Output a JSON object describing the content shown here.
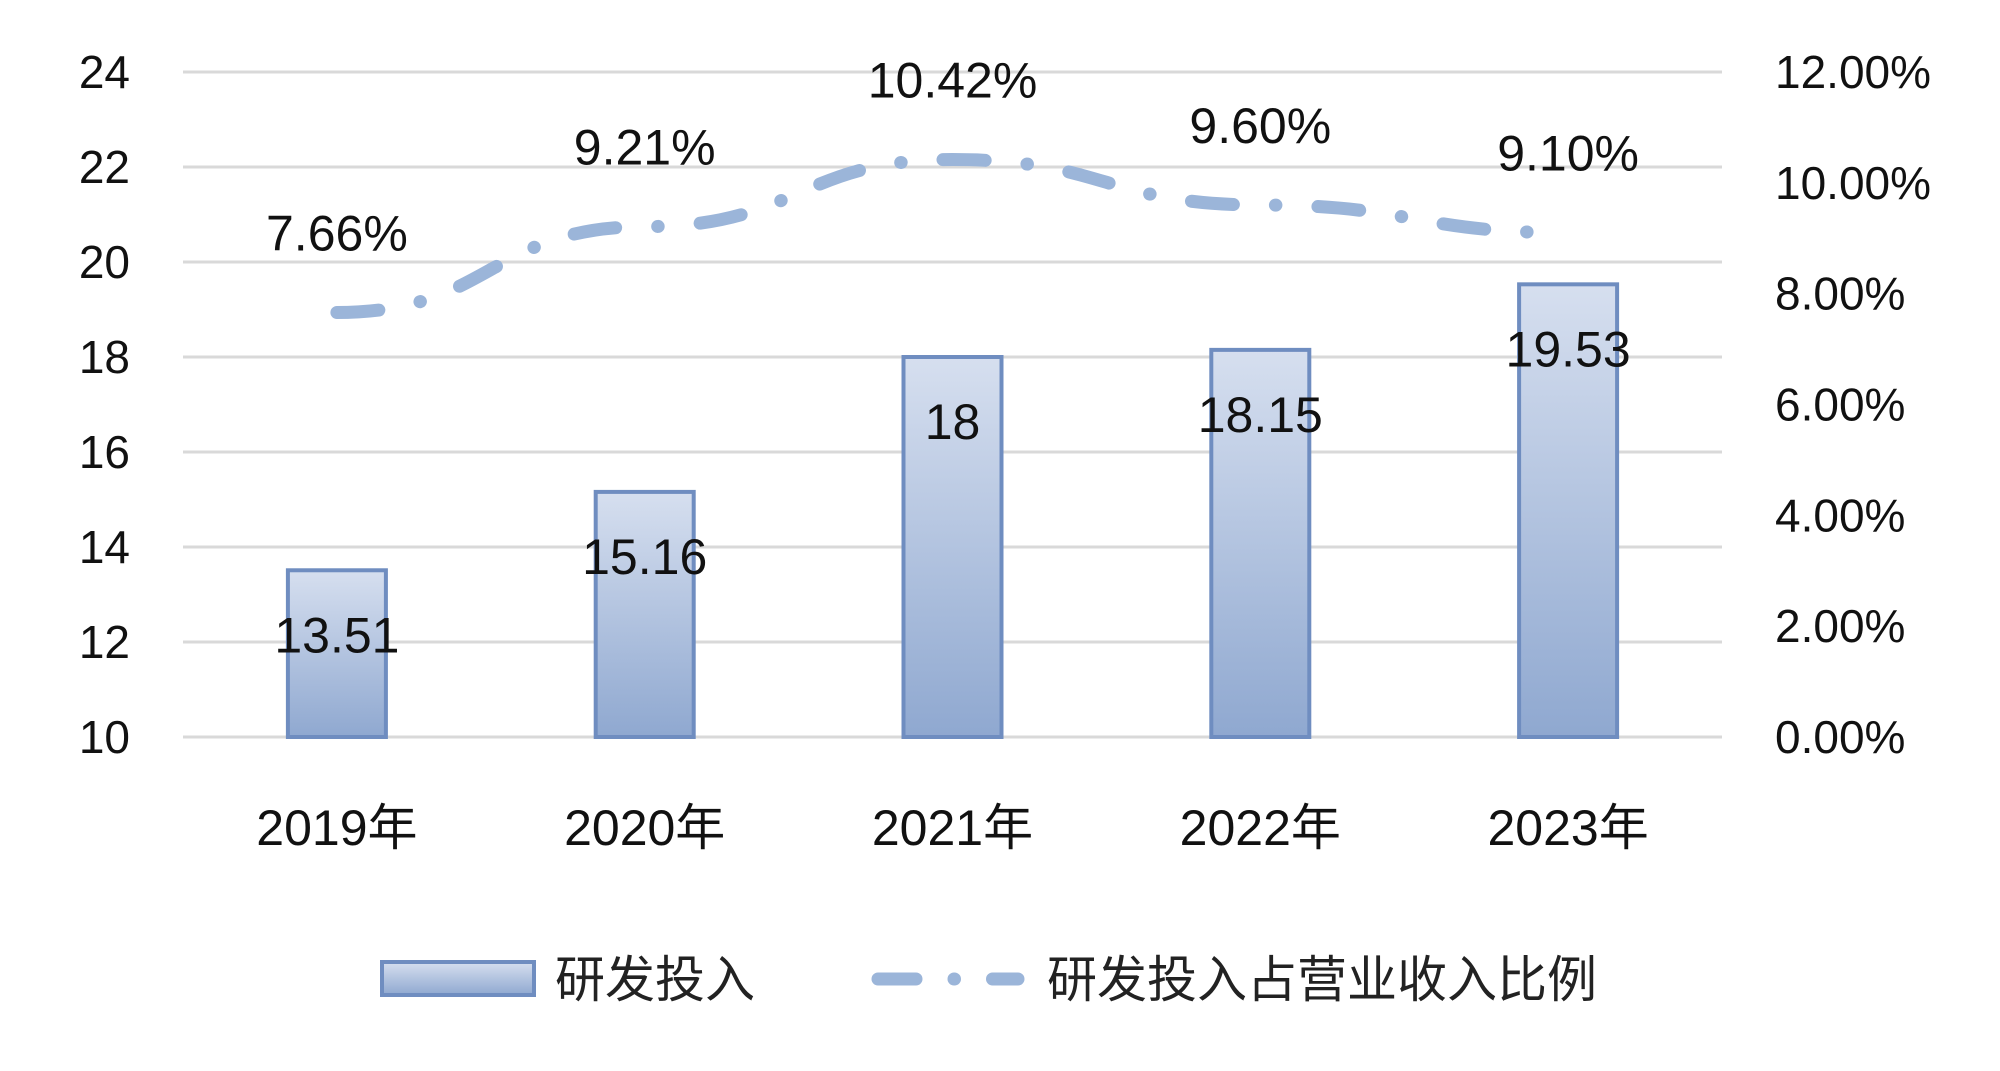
{
  "chart_data": {
    "type": "bar",
    "categories": [
      "2019年",
      "2020年",
      "2021年",
      "2022年",
      "2023年"
    ],
    "series": [
      {
        "name": "研发投入",
        "type": "bar",
        "axis": "left",
        "values": [
          13.51,
          15.16,
          18,
          18.15,
          19.53
        ],
        "labels": [
          "13.51",
          "15.16",
          "18",
          "18.15",
          "19.53"
        ]
      },
      {
        "name": "研发投入占营业收入比例",
        "type": "line",
        "axis": "right",
        "line_style": "dash-dot",
        "values": [
          7.66,
          9.21,
          10.42,
          9.6,
          9.1
        ],
        "labels": [
          "7.66%",
          "9.21%",
          "10.42%",
          "9.60%",
          "9.10%"
        ]
      }
    ],
    "y_left": {
      "range": [
        10,
        24
      ],
      "ticks": [
        10,
        12,
        14,
        16,
        18,
        20,
        22,
        24
      ],
      "tick_labels": [
        "10",
        "12",
        "14",
        "16",
        "18",
        "20",
        "22",
        "24"
      ]
    },
    "y_right": {
      "range": [
        0,
        12
      ],
      "ticks": [
        0,
        2,
        4,
        6,
        8,
        10,
        12
      ],
      "tick_labels": [
        "0.00%",
        "2.00%",
        "4.00%",
        "6.00%",
        "8.00%",
        "10.00%",
        "12.00%"
      ]
    },
    "grid": true,
    "legend": "bottom",
    "colors": {
      "bar_top": "#d6dfef",
      "bar_bottom": "#8fa8d0",
      "bar_border": "#6f8dc0",
      "line": "#9bb5d9",
      "grid": "#d9d9d9"
    }
  }
}
